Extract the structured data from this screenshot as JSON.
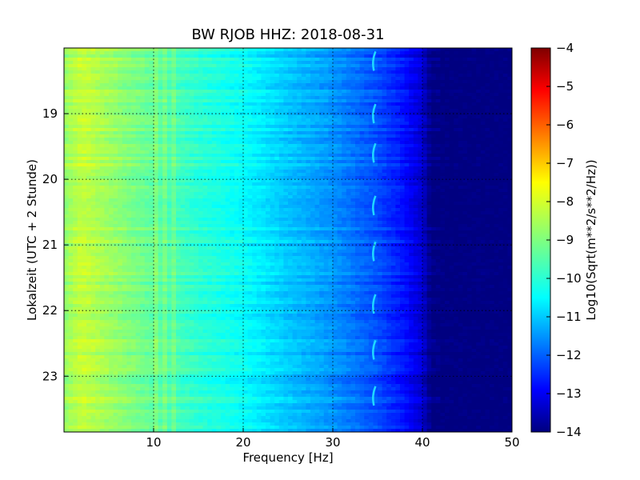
{
  "chart_data": {
    "type": "heatmap",
    "title": "BW RJOB HHZ: 2018-08-31",
    "xlabel": "Frequency [Hz]",
    "ylabel": "Lokalzeit (UTC + 2 Stunde)",
    "colorbar_label": "Log10(Sqrt(m**2/s**2/Hz))",
    "xlim": [
      0,
      50
    ],
    "ylim_hours": [
      18.0,
      23.85
    ],
    "y_inverted": true,
    "grid": true,
    "x_ticks": [
      10,
      20,
      30,
      40,
      50
    ],
    "x_tick_labels": [
      "10",
      "20",
      "30",
      "40",
      "50"
    ],
    "y_ticks": [
      19,
      20,
      21,
      22,
      23
    ],
    "y_tick_labels": [
      "19",
      "20",
      "21",
      "22",
      "23"
    ],
    "colorbar": {
      "range": [
        -14,
        -4
      ],
      "ticks": [
        -14,
        -13,
        -12,
        -11,
        -10,
        -9,
        -8,
        -7,
        -6,
        -5,
        -4
      ],
      "tick_labels": [
        "−14",
        "−13",
        "−12",
        "−11",
        "−10",
        "−9",
        "−8",
        "−7",
        "−6",
        "−5",
        "−4"
      ],
      "colormap": "jet"
    },
    "spectral_profile": {
      "frequency_hz": [
        0,
        2,
        5,
        10,
        15,
        20,
        25,
        30,
        35,
        38,
        40,
        41,
        50
      ],
      "log10_amplitude": [
        -8.8,
        -8.3,
        -8.7,
        -9.3,
        -9.8,
        -10.2,
        -10.8,
        -11.3,
        -12.0,
        -12.6,
        -13.2,
        -14.0,
        -14.0
      ]
    },
    "features": {
      "persistent_line_hz": [
        10.2,
        11.2,
        12.2
      ],
      "transient_line_hz": 34.5,
      "transient_line_hours": [
        18.2,
        19.0,
        19.6,
        20.4,
        21.1,
        21.9,
        22.6,
        23.3
      ]
    }
  }
}
